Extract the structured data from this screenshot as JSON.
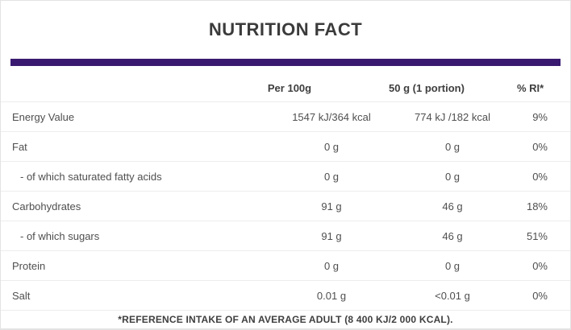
{
  "title": "NUTRITION FACT",
  "colors": {
    "accent": "#3a1a70",
    "separator": "#ededed",
    "heading_text": "#3e3e3e",
    "body_text": "#4f4f4f"
  },
  "table": {
    "columns": [
      "Per 100g",
      "50 g (1 portion)",
      "% RI*"
    ],
    "rows": [
      {
        "label": "Energy Value",
        "per_100g": "1547 kJ/364 kcal",
        "per_portion": "774 kJ /182 kcal",
        "percent_ri": "9%"
      },
      {
        "label": "Fat",
        "per_100g": "0 g",
        "per_portion": "0 g",
        "percent_ri": "0%"
      },
      {
        "label": "- of which saturated fatty acids",
        "per_100g": "0 g",
        "per_portion": "0 g",
        "percent_ri": "0%"
      },
      {
        "label": "Carbohydrates",
        "per_100g": "91 g",
        "per_portion": "46 g",
        "percent_ri": "18%"
      },
      {
        "label": "- of which sugars",
        "per_100g": "91 g",
        "per_portion": "46 g",
        "percent_ri": "51%"
      },
      {
        "label": "Protein",
        "per_100g": "0 g",
        "per_portion": "0 g",
        "percent_ri": "0%"
      },
      {
        "label": "Salt",
        "per_100g": "0.01 g",
        "per_portion": "<0.01 g",
        "percent_ri": "0%"
      }
    ],
    "footnote": "*REFERENCE INTAKE OF AN AVERAGE ADULT (8 400 KJ/2 000 KCAL)."
  }
}
